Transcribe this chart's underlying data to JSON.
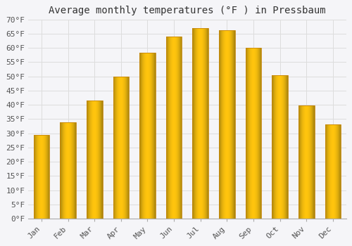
{
  "title": "Average monthly temperatures (°F ) in Pressbaum",
  "months": [
    "Jan",
    "Feb",
    "Mar",
    "Apr",
    "May",
    "Jun",
    "Jul",
    "Aug",
    "Sep",
    "Oct",
    "Nov",
    "Dec"
  ],
  "values": [
    29.5,
    33.8,
    41.5,
    50.0,
    58.3,
    63.9,
    67.0,
    66.2,
    60.1,
    50.5,
    39.8,
    33.1
  ],
  "bar_color_top": "#F5A623",
  "bar_color_mid": "#FFD050",
  "bar_color_edge": "#C8860A",
  "background_color": "#f5f5f8",
  "plot_bg_color": "#f5f5f8",
  "grid_color": "#dddddd",
  "ylim": [
    0,
    70
  ],
  "yticks": [
    0,
    5,
    10,
    15,
    20,
    25,
    30,
    35,
    40,
    45,
    50,
    55,
    60,
    65,
    70
  ],
  "ylabel_suffix": "°F",
  "title_fontsize": 10,
  "tick_fontsize": 8,
  "font_family": "monospace",
  "bar_width": 0.6
}
